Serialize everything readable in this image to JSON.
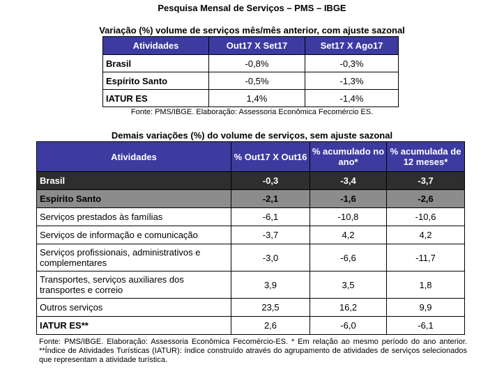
{
  "title": "Pesquisa Mensal de Serviços – PMS – IBGE",
  "table1": {
    "caption": "Variação (%) volume de serviços mês/mês anterior, com ajuste sazonal",
    "headers": [
      "Atividades",
      "Out17 X Set17",
      "Set17 X Ago17"
    ],
    "rows": [
      {
        "name": "Brasil",
        "v1": "-0,8%",
        "v2": "-0,3%"
      },
      {
        "name": "Espírito Santo",
        "v1": "-0,5%",
        "v2": "-1,3%"
      },
      {
        "name": "IATUR ES",
        "v1": "1,4%",
        "v2": "-1,4%"
      }
    ],
    "source": "Fonte: PMS/IBGE. Elaboração: Assessoria Econômica Fecomércio ES."
  },
  "table2": {
    "caption": "Demais variações (%) do volume de serviços, sem ajuste sazonal",
    "headers": [
      "Atividades",
      "% Out17 X Out16",
      "% acumulado no ano*",
      "% acumulada de 12 meses*"
    ],
    "rows": [
      {
        "name": "Brasil",
        "v1": "-0,3",
        "v2": "-3,4",
        "v3": "-3,7"
      },
      {
        "name": "Espírito Santo",
        "v1": "-2,1",
        "v2": "-1,6",
        "v3": "-2,6"
      },
      {
        "name": "Serviços prestados às famílias",
        "v1": "-6,1",
        "v2": "-10,8",
        "v3": "-10,6"
      },
      {
        "name": "Serviços de informação e comunicação",
        "v1": "-3,7",
        "v2": "4,2",
        "v3": "4,2"
      },
      {
        "name": "Serviços profissionais, administrativos e complementares",
        "v1": "-3,0",
        "v2": "-6,6",
        "v3": "-11,7"
      },
      {
        "name": "Transportes, serviços auxiliares dos transportes e correio",
        "v1": "3,9",
        "v2": "3,5",
        "v3": "1,8"
      },
      {
        "name": "Outros serviços",
        "v1": "23,5",
        "v2": "16,2",
        "v3": "9,9"
      },
      {
        "name": "IATUR ES**",
        "v1": "2,6",
        "v2": "-6,0",
        "v3": "-6,1"
      }
    ],
    "source": "Fonte: PMS/IBGE. Elaboração: Assessoria Econômica Fecomércio-ES. * Em relação ao mesmo período do ano anterior. **Índice de Atividades Turísticas (IATUR): índice construído através do agrupamento de atividades de serviços selecionados que representam a atividade turística."
  }
}
